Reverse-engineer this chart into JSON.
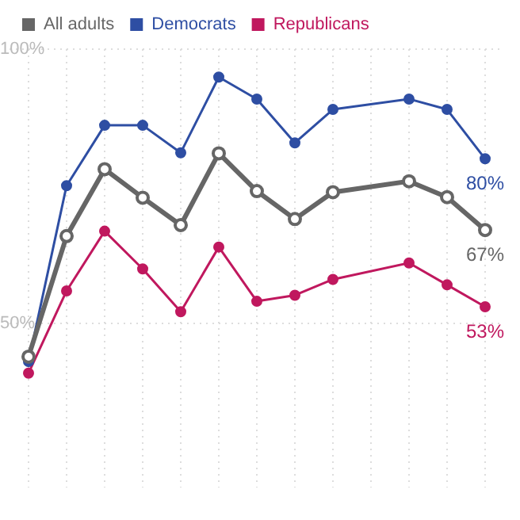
{
  "chart_data": {
    "type": "line",
    "categories": [
      null,
      null,
      null,
      null,
      null,
      null,
      null,
      null,
      null,
      null,
      null,
      null,
      null
    ],
    "series": [
      {
        "name": "All adults",
        "color": "#666666",
        "values": [
          43.9,
          65.9,
          78.1,
          72.9,
          67.9,
          81.0,
          74.1,
          69.0,
          73.9,
          null,
          75.9,
          73.0,
          67
        ]
      },
      {
        "name": "Democrats",
        "color": "#2e4ea3",
        "values": [
          43,
          75.1,
          86.1,
          86.1,
          81.1,
          94.9,
          90.9,
          82.9,
          89.0,
          null,
          90.9,
          89.0,
          80
        ]
      },
      {
        "name": "Republicans",
        "color": "#c0185e",
        "values": [
          40.9,
          55.9,
          66.8,
          59.9,
          52.1,
          63.9,
          54.0,
          55.1,
          58.0,
          null,
          61.0,
          57.0,
          53
        ]
      }
    ],
    "ylim": [
      20,
      100
    ],
    "yticks": [
      {
        "value": 50,
        "label": "50%"
      },
      {
        "value": 100,
        "label": "100%"
      }
    ],
    "annotations": [
      {
        "text": "80%",
        "y": 80
      },
      {
        "text": "67%",
        "y": 67
      },
      {
        "text": "53%",
        "y": 53
      }
    ],
    "grid": true,
    "legend": "top left",
    "marker": "circle",
    "line_style": "solid"
  }
}
